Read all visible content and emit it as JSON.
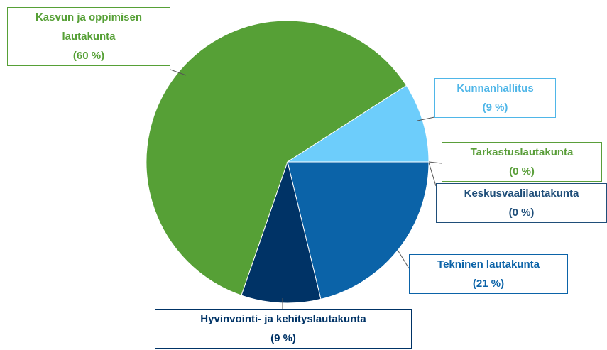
{
  "chart_data": {
    "type": "pie",
    "categories": [
      "Tarkastuslautakunta",
      "Keskusvaalilautakunta",
      "Tekninen lautakunta",
      "Hyvinvointi- ja kehityslautakunta",
      "Kasvun ja oppimisen lautakunta",
      "Kunnanhallitus"
    ],
    "values": [
      0,
      0,
      21,
      9,
      60,
      9
    ],
    "value_labels": [
      "(0 %)",
      "(0 %)",
      "(21 %)",
      "(9 %)",
      "(60 %)",
      "(9 %)"
    ],
    "colors": [
      "#5a9e3a",
      "#1f4e79",
      "#0b63a8",
      "#003366",
      "#56a036",
      "#6dcdfb"
    ]
  }
}
